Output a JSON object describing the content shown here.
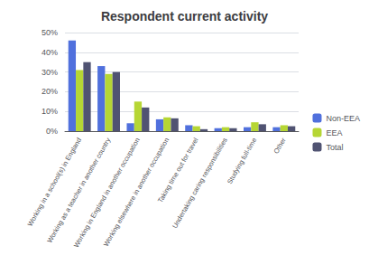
{
  "chart_data": {
    "type": "bar",
    "title": "Respondent current activity",
    "categories": [
      "Working in a school(s) in England",
      "Working as a teacher in another country",
      "Working in England in another occupation",
      "Working elsewhere in another occupation",
      "Taking time out for travel",
      "Undertaking caring responsibilities",
      "Studying full-time",
      "Other"
    ],
    "series": [
      {
        "name": "Non-EEA",
        "values": [
          46,
          33,
          4,
          6,
          3,
          1.5,
          2,
          2
        ]
      },
      {
        "name": "EEA",
        "values": [
          31,
          29,
          15,
          7,
          2.5,
          2,
          4.5,
          3
        ]
      },
      {
        "name": "Total",
        "values": [
          35,
          30,
          12,
          6.5,
          1,
          1.5,
          3.5,
          2.5
        ]
      }
    ],
    "ylim": [
      0,
      50
    ],
    "yticks": [
      {
        "value": 0,
        "label": "0%"
      },
      {
        "value": 10,
        "label": "10%"
      },
      {
        "value": 20,
        "label": "20%"
      },
      {
        "value": 30,
        "label": "30%"
      },
      {
        "value": 40,
        "label": "40%"
      },
      {
        "value": 50,
        "label": "50%"
      }
    ],
    "grid": true,
    "legend": "right"
  }
}
